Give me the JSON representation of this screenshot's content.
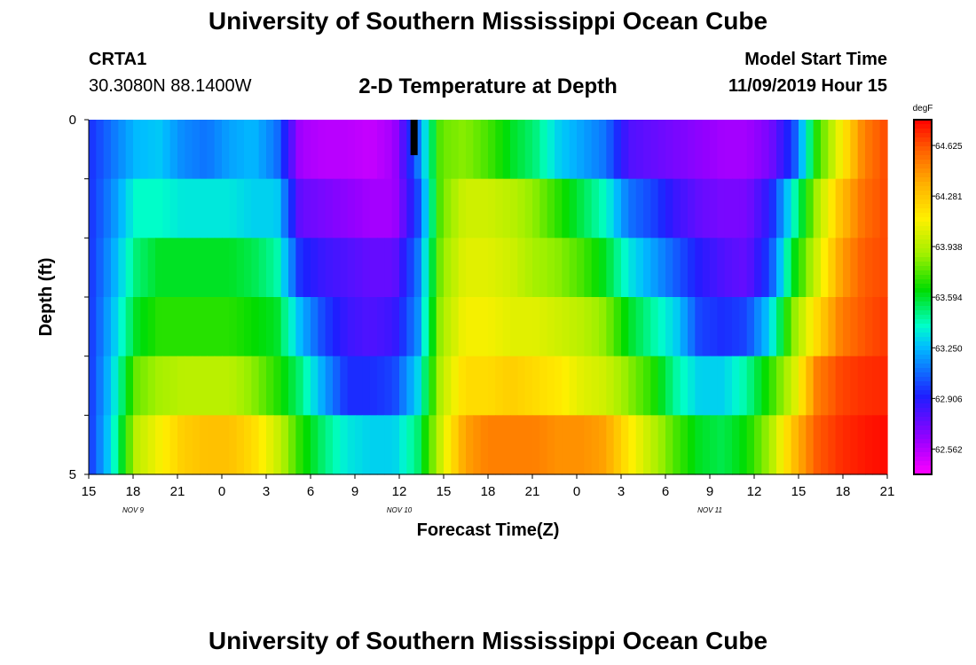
{
  "page": {
    "title": "University of Southern Mississippi Ocean Cube",
    "footer_title": "University of Southern Mississippi Ocean Cube",
    "station_id": "CRTA1",
    "station_coords": "30.3080N 88.1400W",
    "model_start_label": "Model Start Time",
    "model_start_value": "11/09/2019 Hour 15"
  },
  "chart_data": {
    "type": "heatmap",
    "title": "2-D Temperature at Depth",
    "xlabel": "Forecast Time(Z)",
    "ylabel": "Depth (ft)",
    "x_ticks": [
      "15",
      "18",
      "21",
      "0",
      "3",
      "6",
      "9",
      "12",
      "15",
      "18",
      "21",
      "0",
      "3",
      "6",
      "9",
      "12",
      "15",
      "18",
      "21"
    ],
    "date_labels": [
      {
        "text": "NOV  9",
        "tick_index": 1
      },
      {
        "text": "NOV  10",
        "tick_index": 7
      },
      {
        "text": "NOV  11",
        "tick_index": 14
      }
    ],
    "y_tick_labels": [
      {
        "text": "0",
        "depth": 0
      },
      {
        "text": "5",
        "depth": 5
      }
    ],
    "y_range": [
      0,
      5
    ],
    "x_hours": [
      0,
      54
    ],
    "colorbar": {
      "unit": "degF",
      "min": 62.39,
      "max": 64.8,
      "tick_values": [
        "62.562",
        "62.906",
        "63.250",
        "63.594",
        "63.938",
        "64.281",
        "64.625"
      ]
    },
    "marker_hour": 22,
    "rows": [
      {
        "depth": 0,
        "values": [
          62.95,
          63.1,
          63.25,
          63.28,
          63.15,
          63.1,
          63.2,
          63.25,
          63.1,
          62.6,
          62.55,
          62.55,
          62.52,
          62.6,
          63.1,
          63.8,
          63.85,
          63.75,
          63.6,
          63.5,
          63.3,
          63.2,
          63.1,
          62.8,
          62.75,
          62.7,
          62.65,
          62.6,
          62.6,
          62.7,
          63.0,
          63.7,
          64.1,
          64.5,
          64.65
        ]
      },
      {
        "depth": 1,
        "values": [
          62.95,
          63.15,
          63.4,
          63.4,
          63.35,
          63.35,
          63.35,
          63.3,
          63.3,
          62.75,
          62.7,
          62.65,
          62.6,
          62.6,
          63.0,
          63.8,
          64.0,
          64.0,
          63.95,
          63.85,
          63.7,
          63.55,
          63.4,
          63.1,
          63.0,
          62.85,
          62.75,
          62.7,
          62.7,
          62.9,
          63.4,
          63.9,
          64.3,
          64.55,
          64.65
        ]
      },
      {
        "depth": 2,
        "values": [
          62.95,
          63.2,
          63.5,
          63.6,
          63.6,
          63.6,
          63.6,
          63.55,
          63.45,
          62.95,
          62.85,
          62.8,
          62.75,
          62.75,
          63.1,
          63.85,
          64.05,
          64.05,
          64.0,
          63.9,
          63.85,
          63.75,
          63.6,
          63.35,
          63.2,
          63.05,
          62.9,
          62.8,
          62.75,
          63.0,
          63.6,
          64.0,
          64.4,
          64.6,
          64.65
        ]
      },
      {
        "depth": 3,
        "values": [
          62.95,
          63.25,
          63.6,
          63.7,
          63.7,
          63.7,
          63.7,
          63.65,
          63.6,
          63.25,
          63.0,
          62.85,
          62.8,
          62.85,
          63.15,
          63.9,
          64.1,
          64.1,
          64.05,
          64.05,
          64.0,
          63.95,
          63.85,
          63.6,
          63.45,
          63.3,
          63.0,
          62.95,
          63.0,
          63.3,
          63.85,
          64.2,
          64.5,
          64.62,
          64.68
        ]
      },
      {
        "depth": 4,
        "values": [
          62.95,
          63.3,
          63.8,
          63.9,
          63.95,
          63.95,
          63.95,
          63.85,
          63.7,
          63.5,
          63.2,
          62.95,
          62.95,
          63.0,
          63.3,
          63.95,
          64.2,
          64.2,
          64.25,
          64.2,
          64.15,
          64.05,
          64.0,
          63.85,
          63.7,
          63.45,
          63.3,
          63.3,
          63.45,
          63.7,
          64.0,
          64.5,
          64.65,
          64.7,
          64.72
        ]
      },
      {
        "depth": 5,
        "values": [
          62.95,
          63.35,
          63.95,
          64.1,
          64.25,
          64.3,
          64.3,
          64.2,
          64.0,
          63.7,
          63.5,
          63.35,
          63.3,
          63.3,
          63.5,
          64.0,
          64.4,
          64.5,
          64.5,
          64.5,
          64.45,
          64.45,
          64.4,
          64.15,
          63.95,
          63.75,
          63.6,
          63.55,
          63.65,
          63.9,
          64.3,
          64.6,
          64.7,
          64.75,
          64.78
        ]
      }
    ]
  }
}
